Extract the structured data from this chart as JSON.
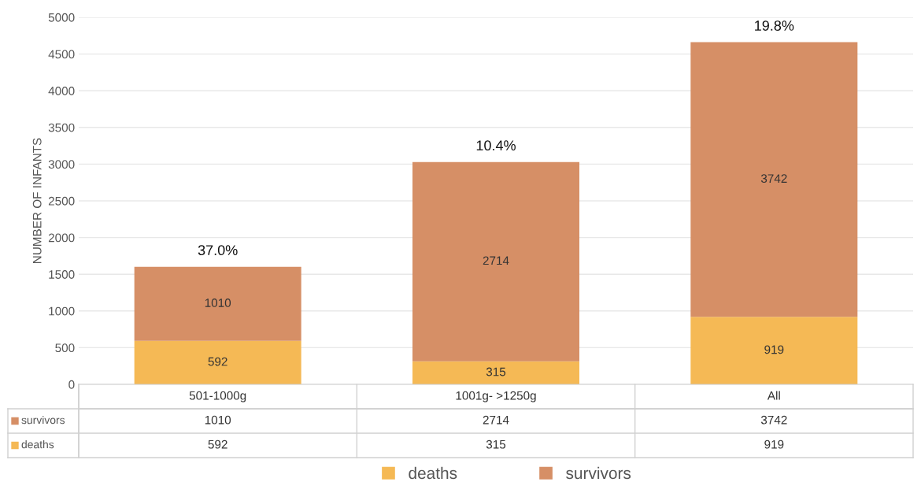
{
  "chart_data": {
    "type": "bar",
    "stacked": true,
    "ylabel": "NUMBER OF INFANTS",
    "categories": [
      "501-1000g",
      "1001g- >1250g",
      "All"
    ],
    "series": [
      {
        "name": "deaths",
        "color": "#f5b955",
        "values": [
          592,
          315,
          919
        ],
        "value_labels": [
          "592",
          "315",
          "919"
        ]
      },
      {
        "name": "survivors",
        "color": "#d68f66",
        "values": [
          1010,
          2714,
          3742
        ],
        "value_labels": [
          "1010",
          "2714",
          "3742"
        ]
      }
    ],
    "annotations": [
      {
        "text": "37.0%",
        "x": "501-1000g",
        "y": 1602
      },
      {
        "text": "10.4%",
        "x": "1001g- >1250g",
        "y": 3029
      },
      {
        "text": "19.8%",
        "x": "All",
        "y": 4661
      }
    ],
    "data_labels": true,
    "ylim": [
      0,
      5000
    ],
    "yticks": [
      0,
      500,
      1000,
      1500,
      2000,
      2500,
      3000,
      3500,
      4000,
      4500,
      5000
    ],
    "grid": "y",
    "legend": "bottom"
  }
}
